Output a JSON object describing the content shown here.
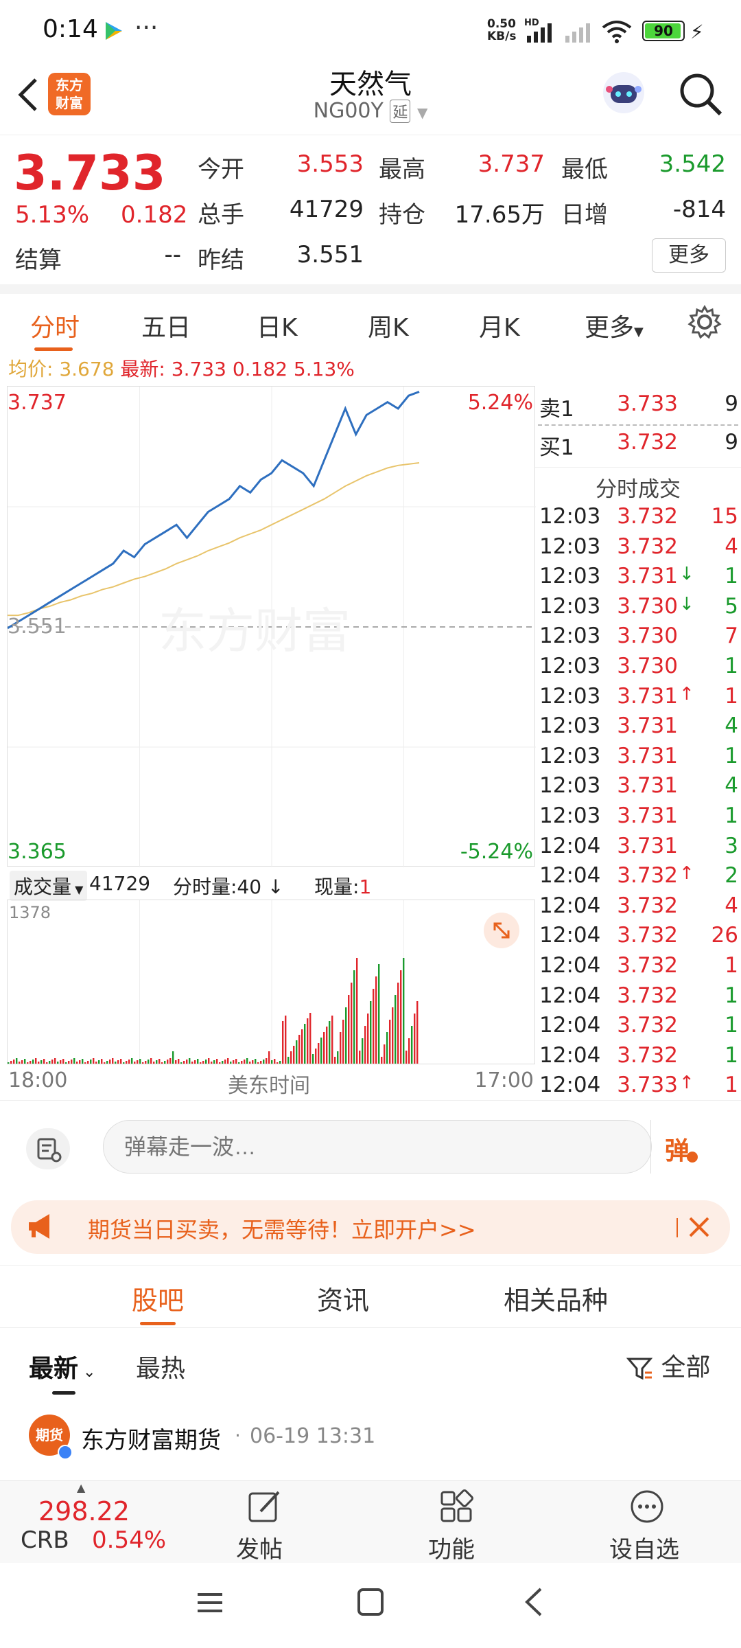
{
  "status_bar": {
    "time": "0:14",
    "net_speed_top": "0.50",
    "net_speed_bottom": "KB/s",
    "hd": "HD",
    "battery": "90"
  },
  "header": {
    "title": "天然气",
    "code": "NG00Y",
    "delay_tag": "延",
    "logo_line1": "东方",
    "logo_line2": "财富"
  },
  "quote": {
    "price": "3.733",
    "change_pct": "5.13%",
    "change": "0.182",
    "fields": [
      {
        "label": "今开",
        "value": "3.553",
        "color": "red"
      },
      {
        "label": "最高",
        "value": "3.737",
        "color": "red"
      },
      {
        "label": "最低",
        "value": "3.542",
        "color": "green"
      },
      {
        "label": "总手",
        "value": "41729",
        "color": "dark"
      },
      {
        "label": "持仓",
        "value": "17.65万",
        "color": "dark"
      },
      {
        "label": "日增",
        "value": "-814",
        "color": "dark"
      },
      {
        "label": "结算",
        "value": "--",
        "color": "dark"
      },
      {
        "label": "昨结",
        "value": "3.551",
        "color": "dark"
      }
    ],
    "more_label": "更多"
  },
  "tabs": [
    "分时",
    "五日",
    "日K",
    "周K",
    "月K",
    "更多"
  ],
  "avg_bar": {
    "avg_label": "均价:",
    "avg_value": "3.678",
    "latest_label": "最新:",
    "latest_value": "3.733",
    "latest_change": "0.182",
    "latest_pct": "5.13%"
  },
  "chart": {
    "y_top": "3.737",
    "y_bottom": "3.365",
    "y_mid": "3.551",
    "pct_top": "5.24%",
    "pct_bottom": "-5.24%",
    "watermark": "东方财富",
    "x_left": "18:00",
    "x_mid": "美东时间",
    "x_right": "17:00"
  },
  "chart_data": {
    "type": "line",
    "ylim": [
      3.365,
      3.737
    ],
    "baseline": 3.551,
    "series": [
      {
        "name": "最新",
        "values": [
          3.55,
          3.555,
          3.56,
          3.565,
          3.57,
          3.575,
          3.58,
          3.585,
          3.59,
          3.595,
          3.6,
          3.61,
          3.605,
          3.615,
          3.62,
          3.625,
          3.63,
          3.62,
          3.63,
          3.64,
          3.645,
          3.65,
          3.66,
          3.655,
          3.665,
          3.67,
          3.68,
          3.675,
          3.67,
          3.66,
          3.68,
          3.7,
          3.72,
          3.7,
          3.715,
          3.72,
          3.725,
          3.72,
          3.73,
          3.733
        ]
      },
      {
        "name": "均价",
        "values": [
          3.56,
          3.56,
          3.562,
          3.565,
          3.567,
          3.57,
          3.572,
          3.575,
          3.577,
          3.58,
          3.582,
          3.585,
          3.588,
          3.59,
          3.593,
          3.596,
          3.6,
          3.603,
          3.606,
          3.61,
          3.613,
          3.616,
          3.62,
          3.623,
          3.626,
          3.63,
          3.634,
          3.638,
          3.642,
          3.646,
          3.65,
          3.655,
          3.66,
          3.664,
          3.668,
          3.671,
          3.674,
          3.676,
          3.677,
          3.678
        ]
      }
    ]
  },
  "volume": {
    "label": "成交量",
    "total": "41729",
    "split_label": "分时量:40",
    "now_label": "现量:",
    "now_value": "1",
    "max_tick": "1378"
  },
  "orderbook": {
    "sell_label": "卖1",
    "sell_price": "3.733",
    "sell_vol": "9",
    "buy_label": "买1",
    "buy_price": "3.732",
    "buy_vol": "9",
    "trades_title": "分时成交"
  },
  "trades": [
    {
      "t": "12:03",
      "p": "3.732",
      "a": "",
      "v": "15",
      "vc": "red"
    },
    {
      "t": "12:03",
      "p": "3.732",
      "a": "",
      "v": "4",
      "vc": "red"
    },
    {
      "t": "12:03",
      "p": "3.731",
      "a": "↓",
      "v": "1",
      "vc": "green"
    },
    {
      "t": "12:03",
      "p": "3.730",
      "a": "↓",
      "v": "5",
      "vc": "green"
    },
    {
      "t": "12:03",
      "p": "3.730",
      "a": "",
      "v": "7",
      "vc": "red"
    },
    {
      "t": "12:03",
      "p": "3.730",
      "a": "",
      "v": "1",
      "vc": "green"
    },
    {
      "t": "12:03",
      "p": "3.731",
      "a": "↑",
      "v": "1",
      "vc": "red"
    },
    {
      "t": "12:03",
      "p": "3.731",
      "a": "",
      "v": "4",
      "vc": "green"
    },
    {
      "t": "12:03",
      "p": "3.731",
      "a": "",
      "v": "1",
      "vc": "green"
    },
    {
      "t": "12:03",
      "p": "3.731",
      "a": "",
      "v": "4",
      "vc": "green"
    },
    {
      "t": "12:03",
      "p": "3.731",
      "a": "",
      "v": "1",
      "vc": "green"
    },
    {
      "t": "12:04",
      "p": "3.731",
      "a": "",
      "v": "3",
      "vc": "green"
    },
    {
      "t": "12:04",
      "p": "3.732",
      "a": "↑",
      "v": "2",
      "vc": "green"
    },
    {
      "t": "12:04",
      "p": "3.732",
      "a": "",
      "v": "4",
      "vc": "red"
    },
    {
      "t": "12:04",
      "p": "3.732",
      "a": "",
      "v": "26",
      "vc": "red"
    },
    {
      "t": "12:04",
      "p": "3.732",
      "a": "",
      "v": "1",
      "vc": "red"
    },
    {
      "t": "12:04",
      "p": "3.732",
      "a": "",
      "v": "1",
      "vc": "green"
    },
    {
      "t": "12:04",
      "p": "3.732",
      "a": "",
      "v": "1",
      "vc": "green"
    },
    {
      "t": "12:04",
      "p": "3.732",
      "a": "",
      "v": "1",
      "vc": "green"
    },
    {
      "t": "12:04",
      "p": "3.733",
      "a": "↑",
      "v": "1",
      "vc": "red"
    }
  ],
  "danmu": {
    "placeholder": "弹幕走一波…",
    "send_label": "弹"
  },
  "ad": {
    "text": "期货当日买卖，无需等待！立即开户>>"
  },
  "subtabs": [
    "股吧",
    "资讯",
    "相关品种"
  ],
  "filters": {
    "latest": "最新",
    "hot": "最热",
    "all": "全部"
  },
  "post": {
    "author": "东方财富期货",
    "time": "06-19 13:31",
    "avatar_text": "期货"
  },
  "bottombar": {
    "index_value": "298.22",
    "index_name": "CRB",
    "index_pct": "0.54%",
    "post_label": "发帖",
    "func_label": "功能",
    "watch_label": "设自选"
  }
}
